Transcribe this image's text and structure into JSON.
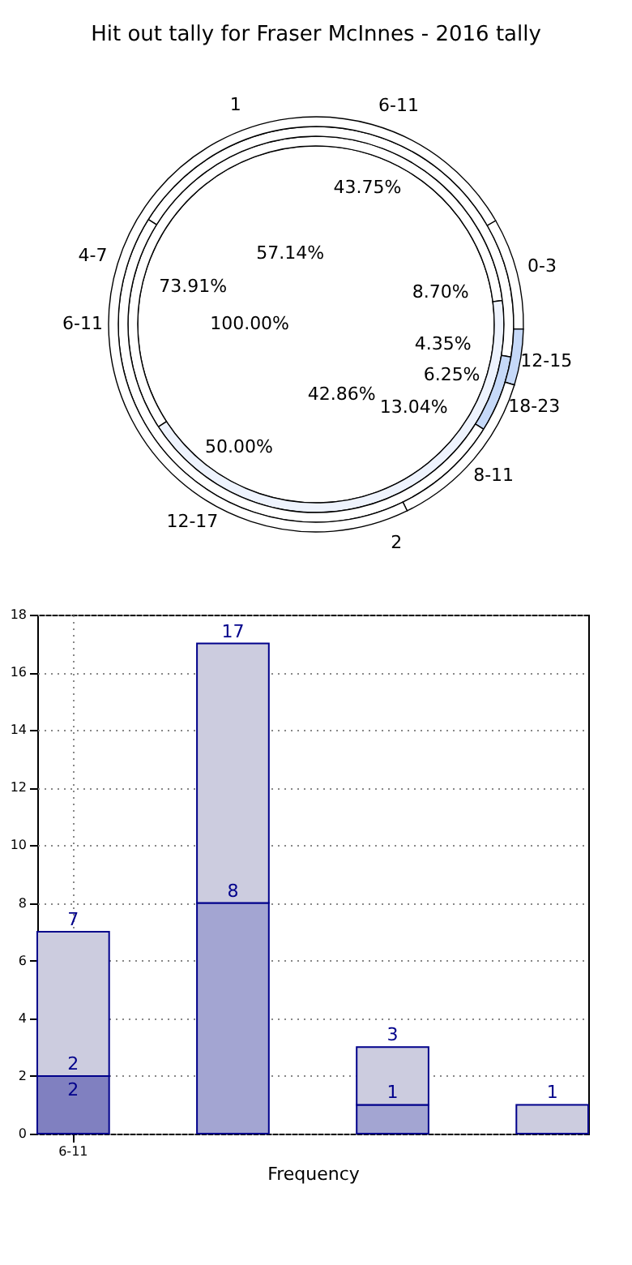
{
  "chart_data": [
    {
      "type": "donut",
      "title": "Hit out tally for Fraser McInnes - 2016 tally",
      "categories": [
        "0-3",
        "12-15",
        "8-11",
        "4-7"
      ],
      "values": [
        8.7,
        4.35,
        13.04,
        73.91
      ],
      "colors": [
        "#ffffff",
        "#c6d9f8",
        "#ffffff",
        "#ffffff"
      ],
      "value_labels": [
        "8.70%",
        "4.35%",
        "13.04%",
        "73.91%"
      ]
    },
    {
      "type": "donut",
      "categories": [
        "6-11",
        "18-23",
        "12-17"
      ],
      "values": [
        43.75,
        6.25,
        50.0
      ],
      "colors": [
        "#ffffff",
        "#c6d9f8",
        "#ffffff"
      ],
      "value_labels": [
        "43.75%",
        "6.25%",
        "50.00%"
      ]
    },
    {
      "type": "donut",
      "categories": [
        "1",
        "2"
      ],
      "values": [
        57.14,
        42.86
      ],
      "colors": [
        "#ffffff",
        "#eef3fd"
      ],
      "value_labels": [
        "57.14%",
        "42.86%"
      ]
    },
    {
      "type": "pie",
      "categories": [
        "6-11"
      ],
      "values": [
        100.0
      ],
      "colors": [
        "#ffffff"
      ],
      "value_labels": [
        "100.00%"
      ]
    },
    {
      "type": "bar",
      "stacked": true,
      "xlabel": "Frequency",
      "categories": [
        "6-11",
        null,
        null,
        null
      ],
      "series": [
        {
          "values": [
            2,
            8,
            1,
            null
          ],
          "colors": [
            "#8080c0",
            "#a3a5d2",
            "#a3a5d2",
            null
          ],
          "value_labels": [
            "2",
            "8",
            "1",
            null
          ]
        },
        {
          "values": [
            5,
            9,
            2,
            1
          ],
          "color": "#ccccdf"
        }
      ],
      "totals": [
        "7",
        "17",
        "3",
        "1"
      ],
      "annotations": [
        {
          "text": "2",
          "x": "6-11",
          "y": 2
        }
      ],
      "ylim": [
        0,
        18
      ],
      "yticks": [
        0,
        2,
        4,
        6,
        8,
        10,
        12,
        14,
        16,
        18
      ],
      "grid": true
    }
  ]
}
